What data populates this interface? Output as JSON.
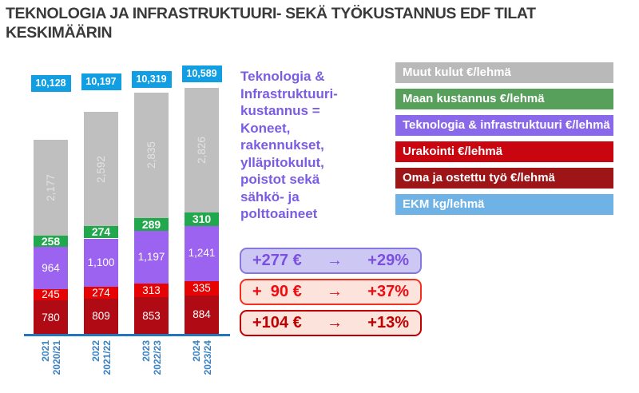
{
  "title": "TEKNOLOGIA JA INFRASTRUKTUURI- SEKÄ TYÖKUSTANNUS EDF TILAT\nKESKIMÄÄRIN",
  "note": {
    "text": "Teknologia &\nInfrastruktuuri-\nkustannus =\nKoneet,\nrakennukset,\nylläpitokulut,\npoistot sekä\nsähkö- ja\npolttoaineet"
  },
  "chart_data": {
    "type": "bar",
    "stacked": true,
    "title": "Teknologia ja infrastruktuuri- sekä työkustannus EDF tilat keskimäärin",
    "categories": [
      {
        "line1": "2021",
        "line2": "2020/21"
      },
      {
        "line1": "2022",
        "line2": "2021/22"
      },
      {
        "line1": "2023",
        "line2": "2022/23"
      },
      {
        "line1": "2024",
        "line2": "2023/24"
      }
    ],
    "series": [
      {
        "name": "Oma ja ostettu työ €/lehmä",
        "color": "#b00b15",
        "values": [
          780,
          809,
          853,
          884
        ],
        "label_style": "normal"
      },
      {
        "name": "Urakointi €/lehmä",
        "color": "#e60303",
        "values": [
          245,
          274,
          313,
          335
        ],
        "label_style": "normal"
      },
      {
        "name": "Teknologia & infrastruktuuri €/lehmä",
        "color": "#9c63f0",
        "values": [
          964,
          1100,
          1197,
          1241
        ],
        "label_style": "normal"
      },
      {
        "name": "Maan kustannus €/lehmä",
        "color": "#21a84c",
        "values": [
          258,
          274,
          289,
          310
        ],
        "label_style": "bold"
      },
      {
        "name": "Muut kulut €/lehmä",
        "color": "#bfbfbf",
        "values": [
          2177,
          2592,
          2835,
          2826
        ],
        "label_style": "rotated"
      }
    ],
    "secondary_series": {
      "name": "EKM kg/lehmä",
      "color": "#119ee2",
      "values": [
        10128,
        10197,
        10319,
        10589
      ]
    },
    "axis_color": "#2176bd",
    "category_label_color": "#3b82c4",
    "grid": false,
    "legend_position": "right"
  },
  "legend": {
    "items": [
      {
        "label": "Muut kulut €/lehmä",
        "color": "#b9b9b9"
      },
      {
        "label": "Maan kustannus €/lehmä",
        "color": "#57a05c"
      },
      {
        "label": "Teknologia & infrastruktuuri €/lehmä",
        "color": "#8a68ea"
      },
      {
        "label": "Urakointi €/lehmä",
        "color": "#c9060f"
      },
      {
        "label": "Oma ja ostettu työ €/lehmä",
        "color": "#9e1518"
      },
      {
        "label": "EKM kg/lehmä",
        "color": "#6fb2e5"
      }
    ]
  },
  "change_boxes": [
    {
      "amount": "+277 €",
      "arrow": "→",
      "percent": "+29%",
      "text_color": "#7d4fe0",
      "border_color": "#8577dd",
      "bg_color": "#cdc8f3"
    },
    {
      "amount": "+  90 €",
      "arrow": "→",
      "percent": "+37%",
      "text_color": "#f20a10",
      "border_color": "#f3301e",
      "bg_color": "#fce4dc"
    },
    {
      "amount": "+104 €",
      "arrow": "→",
      "percent": "+13%",
      "text_color": "#c00000",
      "border_color": "#c00000",
      "bg_color": "#fce4dc"
    }
  ]
}
